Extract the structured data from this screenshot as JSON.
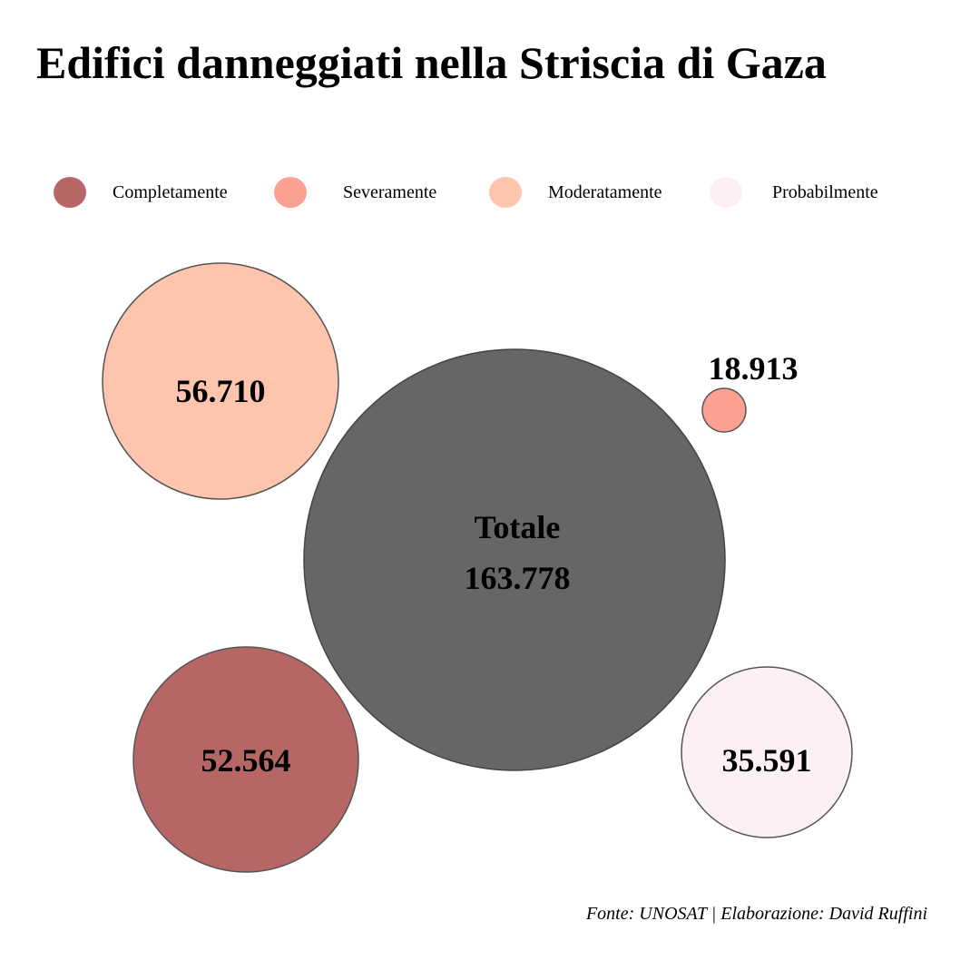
{
  "chart_data": {
    "type": "bubble",
    "title": "Edifici danneggiati nella Striscia di Gaza",
    "caption": "Fonte: UNOSAT | Elaborazione: David Ruffini",
    "legend_placement": "top",
    "grid": false,
    "categories": [
      "Completamente",
      "Severamente",
      "Moderatamente",
      "Probabilmente"
    ],
    "values": [
      52564,
      18913,
      56710,
      35591
    ],
    "value_labels": [
      "52.564",
      "18.913",
      "56.710",
      "35.591"
    ],
    "colors": [
      "#b76666",
      "#fca192",
      "#fdc4ae",
      "#fcf0f4"
    ],
    "total": {
      "label": "Totale",
      "value": 163778,
      "value_label": "163.778",
      "color": "#666666"
    }
  }
}
